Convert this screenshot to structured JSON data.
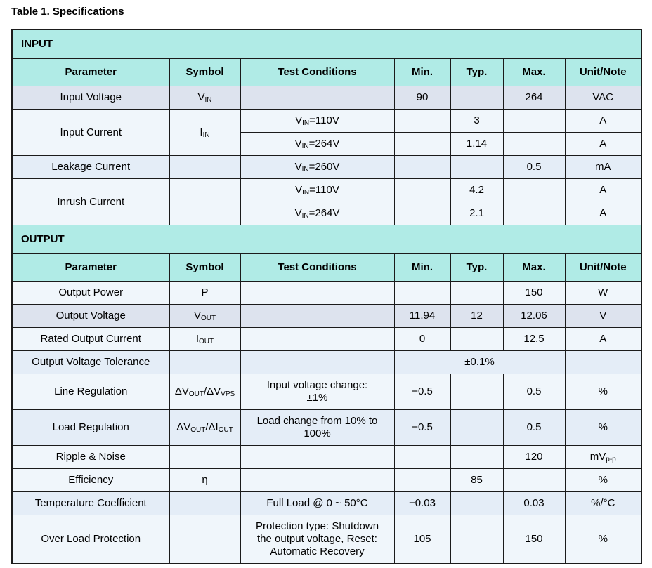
{
  "title": "Table 1. Specifications",
  "colors": {
    "header_bg": "#b0ebe6",
    "row_light": "#f0f6fb",
    "row_dark": "#dde3ee",
    "row_medium": "#e4edf7",
    "border": "#1b1b1b",
    "text": "#000000"
  },
  "table": {
    "columns": [
      "Parameter",
      "Symbol",
      "Test Conditions",
      "Min.",
      "Typ.",
      "Max.",
      "Unit/Note"
    ],
    "sections": [
      {
        "name": "INPUT",
        "rows": [
          {
            "shade": "dark",
            "cells": [
              {
                "name": "parameter-cell",
                "text": "Input Voltage"
              },
              {
                "name": "symbol-cell",
                "text": "V_{IN}"
              },
              {
                "name": "condition-cell",
                "text": ""
              },
              {
                "name": "min-cell",
                "text": "90"
              },
              {
                "name": "typ-cell",
                "text": ""
              },
              {
                "name": "max-cell",
                "text": "264"
              },
              {
                "name": "unit-cell",
                "text": "VAC"
              }
            ]
          },
          {
            "shade": "light",
            "cells": [
              {
                "name": "parameter-cell",
                "text": "Input Current",
                "rowspan": 2
              },
              {
                "name": "symbol-cell",
                "text": "I_{IN}",
                "rowspan": 2
              },
              {
                "name": "condition-cell",
                "text": "V_{IN}=110V"
              },
              {
                "name": "min-cell",
                "text": ""
              },
              {
                "name": "typ-cell",
                "text": "3"
              },
              {
                "name": "max-cell",
                "text": ""
              },
              {
                "name": "unit-cell",
                "text": "A"
              }
            ]
          },
          {
            "shade": "light",
            "cells": [
              {
                "name": "condition-cell",
                "text": "V_{IN}=264V"
              },
              {
                "name": "min-cell",
                "text": ""
              },
              {
                "name": "typ-cell",
                "text": "1.14"
              },
              {
                "name": "max-cell",
                "text": ""
              },
              {
                "name": "unit-cell",
                "text": "A"
              }
            ]
          },
          {
            "shade": "medium",
            "cells": [
              {
                "name": "parameter-cell",
                "text": "Leakage Current"
              },
              {
                "name": "symbol-cell",
                "text": ""
              },
              {
                "name": "condition-cell",
                "text": "V_{IN}=260V"
              },
              {
                "name": "min-cell",
                "text": ""
              },
              {
                "name": "typ-cell",
                "text": ""
              },
              {
                "name": "max-cell",
                "text": "0.5"
              },
              {
                "name": "unit-cell",
                "text": "mA"
              }
            ]
          },
          {
            "shade": "light",
            "cells": [
              {
                "name": "parameter-cell",
                "text": "Inrush Current",
                "rowspan": 2
              },
              {
                "name": "symbol-cell",
                "text": "",
                "rowspan": 2
              },
              {
                "name": "condition-cell",
                "text": "V_{IN}=110V"
              },
              {
                "name": "min-cell",
                "text": ""
              },
              {
                "name": "typ-cell",
                "text": "4.2"
              },
              {
                "name": "max-cell",
                "text": ""
              },
              {
                "name": "unit-cell",
                "text": "A"
              }
            ]
          },
          {
            "shade": "light",
            "cells": [
              {
                "name": "condition-cell",
                "text": "V_{IN}=264V"
              },
              {
                "name": "min-cell",
                "text": ""
              },
              {
                "name": "typ-cell",
                "text": "2.1"
              },
              {
                "name": "max-cell",
                "text": ""
              },
              {
                "name": "unit-cell",
                "text": "A"
              }
            ]
          }
        ]
      },
      {
        "name": "OUTPUT",
        "rows": [
          {
            "shade": "light",
            "cells": [
              {
                "name": "parameter-cell",
                "text": "Output Power"
              },
              {
                "name": "symbol-cell",
                "text": "P"
              },
              {
                "name": "condition-cell",
                "text": ""
              },
              {
                "name": "min-cell",
                "text": ""
              },
              {
                "name": "typ-cell",
                "text": ""
              },
              {
                "name": "max-cell",
                "text": "150"
              },
              {
                "name": "unit-cell",
                "text": "W"
              }
            ]
          },
          {
            "shade": "dark",
            "cells": [
              {
                "name": "parameter-cell",
                "text": "Output Voltage"
              },
              {
                "name": "symbol-cell",
                "text": "V_{OUT}"
              },
              {
                "name": "condition-cell",
                "text": ""
              },
              {
                "name": "min-cell",
                "text": "11.94"
              },
              {
                "name": "typ-cell",
                "text": "12"
              },
              {
                "name": "max-cell",
                "text": "12.06"
              },
              {
                "name": "unit-cell",
                "text": "V"
              }
            ]
          },
          {
            "shade": "light",
            "cells": [
              {
                "name": "parameter-cell",
                "text": "Rated Output Current"
              },
              {
                "name": "symbol-cell",
                "text": "I_{OUT}"
              },
              {
                "name": "condition-cell",
                "text": ""
              },
              {
                "name": "min-cell",
                "text": "0"
              },
              {
                "name": "typ-cell",
                "text": ""
              },
              {
                "name": "max-cell",
                "text": "12.5"
              },
              {
                "name": "unit-cell",
                "text": "A"
              }
            ]
          },
          {
            "shade": "medium",
            "cells": [
              {
                "name": "parameter-cell",
                "text": "Output Voltage Tolerance"
              },
              {
                "name": "symbol-cell",
                "text": ""
              },
              {
                "name": "condition-cell",
                "text": ""
              },
              {
                "name": "value-cell",
                "text": "±0.1%",
                "colspan": 3
              },
              {
                "name": "unit-cell",
                "text": ""
              }
            ]
          },
          {
            "shade": "light",
            "cells": [
              {
                "name": "parameter-cell",
                "text": "Line Regulation"
              },
              {
                "name": "symbol-cell",
                "text": "ΔV_{OUT}/ΔV_{VPS}"
              },
              {
                "name": "condition-cell",
                "text": "Input voltage change:\n±1%"
              },
              {
                "name": "min-cell",
                "text": "−0.5"
              },
              {
                "name": "typ-cell",
                "text": ""
              },
              {
                "name": "max-cell",
                "text": "0.5"
              },
              {
                "name": "unit-cell",
                "text": "%"
              }
            ]
          },
          {
            "shade": "medium",
            "cells": [
              {
                "name": "parameter-cell",
                "text": "Load Regulation"
              },
              {
                "name": "symbol-cell",
                "text": "ΔV_{OUT}/ΔI_{OUT}"
              },
              {
                "name": "condition-cell",
                "text": "Load change from 10% to\n100%"
              },
              {
                "name": "min-cell",
                "text": "−0.5"
              },
              {
                "name": "typ-cell",
                "text": ""
              },
              {
                "name": "max-cell",
                "text": "0.5"
              },
              {
                "name": "unit-cell",
                "text": "%"
              }
            ]
          },
          {
            "shade": "light",
            "cells": [
              {
                "name": "parameter-cell",
                "text": "Ripple & Noise"
              },
              {
                "name": "symbol-cell",
                "text": ""
              },
              {
                "name": "condition-cell",
                "text": ""
              },
              {
                "name": "min-cell",
                "text": ""
              },
              {
                "name": "typ-cell",
                "text": ""
              },
              {
                "name": "max-cell",
                "text": "120"
              },
              {
                "name": "unit-cell",
                "text": "mV_{p-p}"
              }
            ]
          },
          {
            "shade": "light",
            "cells": [
              {
                "name": "parameter-cell",
                "text": "Efficiency"
              },
              {
                "name": "symbol-cell",
                "text": "η"
              },
              {
                "name": "condition-cell",
                "text": ""
              },
              {
                "name": "min-cell",
                "text": ""
              },
              {
                "name": "typ-cell",
                "text": "85"
              },
              {
                "name": "max-cell",
                "text": ""
              },
              {
                "name": "unit-cell",
                "text": "%"
              }
            ]
          },
          {
            "shade": "medium",
            "cells": [
              {
                "name": "parameter-cell",
                "text": "Temperature Coefficient"
              },
              {
                "name": "symbol-cell",
                "text": ""
              },
              {
                "name": "condition-cell",
                "text": "Full Load @ 0 ~ 50°C"
              },
              {
                "name": "min-cell",
                "text": "−0.03"
              },
              {
                "name": "typ-cell",
                "text": ""
              },
              {
                "name": "max-cell",
                "text": "0.03"
              },
              {
                "name": "unit-cell",
                "text": "%/°C"
              }
            ]
          },
          {
            "shade": "light",
            "cells": [
              {
                "name": "parameter-cell",
                "text": "Over Load Protection"
              },
              {
                "name": "symbol-cell",
                "text": ""
              },
              {
                "name": "condition-cell",
                "text": "Protection type: Shutdown\nthe output voltage, Reset:\nAutomatic Recovery"
              },
              {
                "name": "min-cell",
                "text": "105"
              },
              {
                "name": "typ-cell",
                "text": ""
              },
              {
                "name": "max-cell",
                "text": "150"
              },
              {
                "name": "unit-cell",
                "text": "%"
              }
            ]
          }
        ]
      }
    ]
  }
}
